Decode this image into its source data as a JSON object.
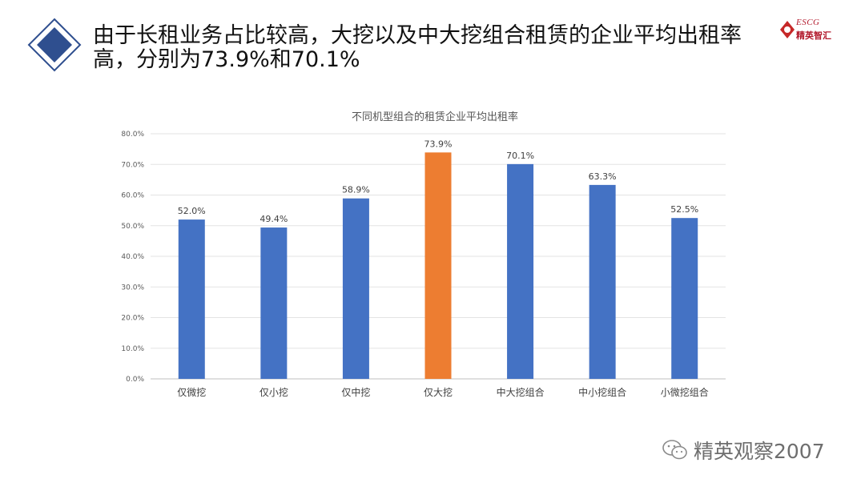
{
  "headline": "由于长租业务占比较高，大挖以及中大挖组合租赁的企业平均出租率高，分别为73.9%和70.1%",
  "logo": {
    "text": "ESCG",
    "sub": "精英智汇"
  },
  "watermark": {
    "text": "精英观察2007",
    "icon": "wechat-icon"
  },
  "colors": {
    "bar": "#4472C4",
    "highlight": "#ED7D31",
    "accent": "#2F4F8F"
  },
  "chart_data": {
    "type": "bar",
    "title": "不同机型组合的租赁企业平均出租率",
    "categories": [
      "仅微挖",
      "仅小挖",
      "仅中挖",
      "仅大挖",
      "中大挖组合",
      "中小挖组合",
      "小微挖组合"
    ],
    "values": [
      52.0,
      49.4,
      58.9,
      73.9,
      70.1,
      63.3,
      52.5
    ],
    "value_labels": [
      "52.0%",
      "49.4%",
      "58.9%",
      "73.9%",
      "70.1%",
      "63.3%",
      "52.5%"
    ],
    "highlight_index": 3,
    "ylim": [
      0,
      80
    ],
    "yticks": [
      0,
      10,
      20,
      30,
      40,
      50,
      60,
      70,
      80
    ],
    "ytick_labels": [
      "0.0%",
      "10.0%",
      "20.0%",
      "30.0%",
      "40.0%",
      "50.0%",
      "60.0%",
      "70.0%",
      "80.0%"
    ],
    "xlabel": "",
    "ylabel": "",
    "grid": true,
    "legend": "none"
  }
}
